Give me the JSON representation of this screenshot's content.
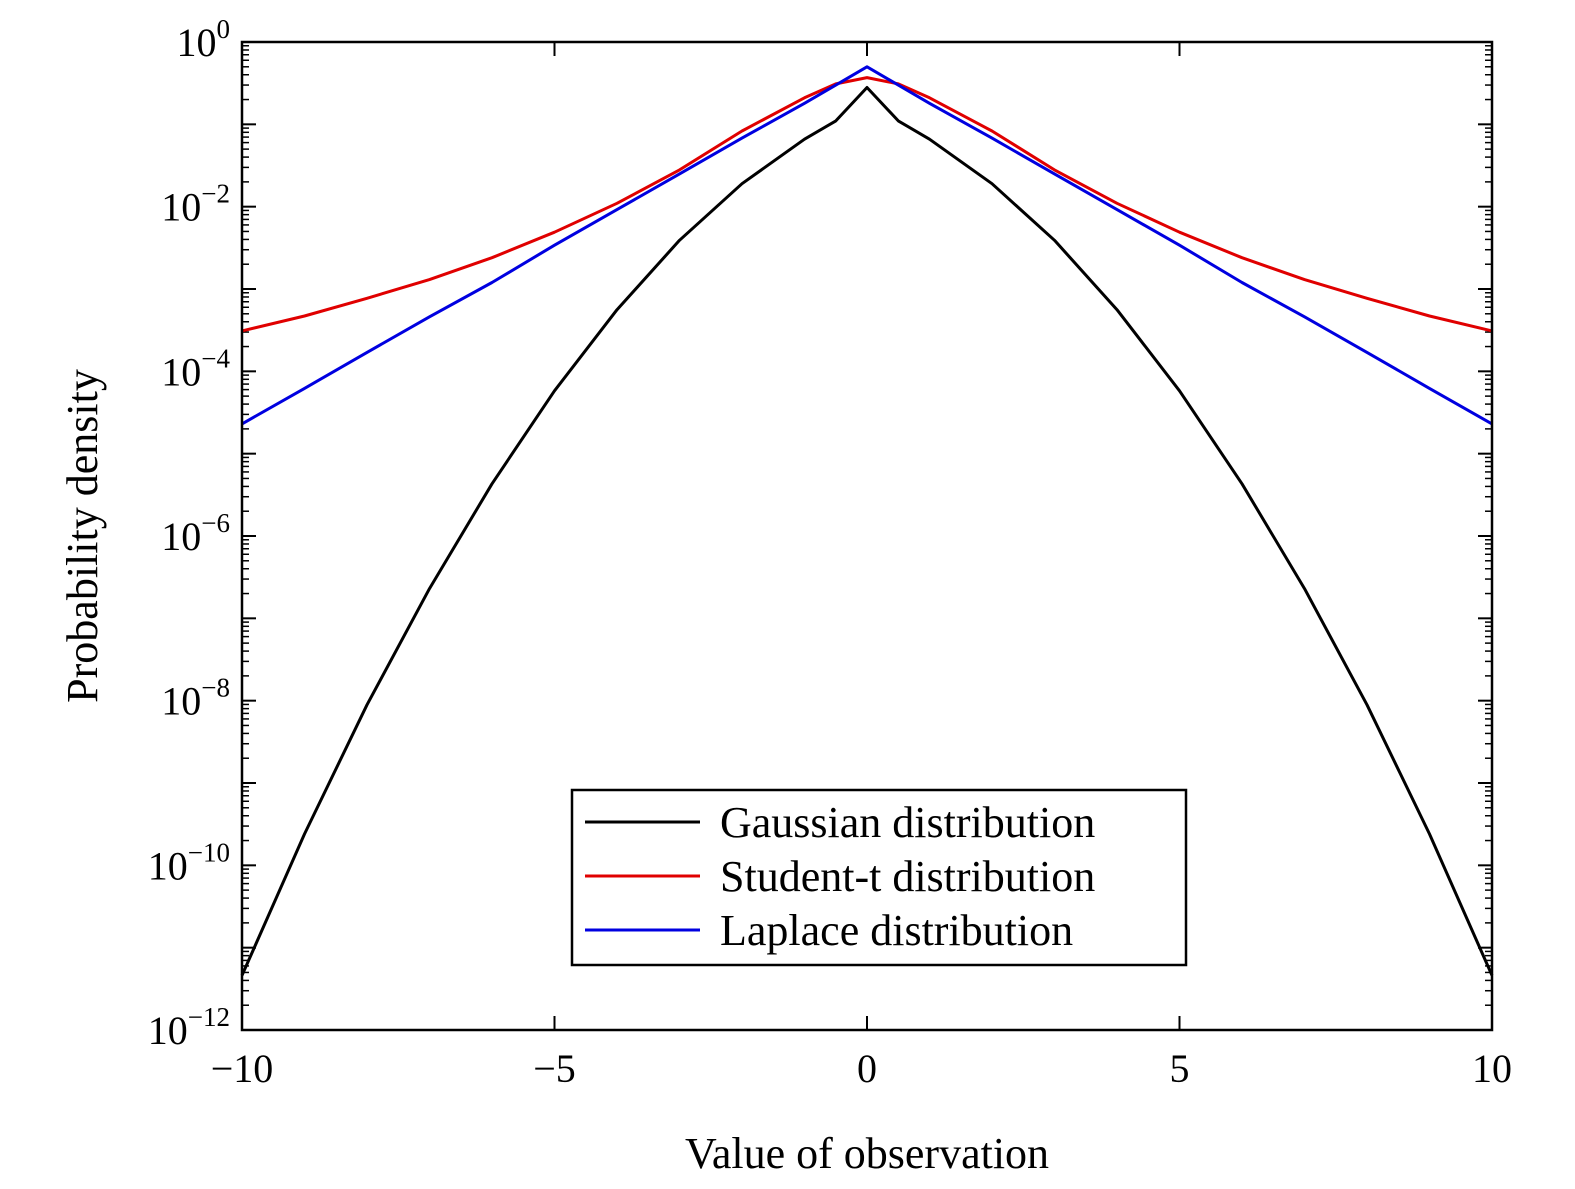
{
  "chart_data": {
    "type": "line",
    "xlabel": "Value of observation",
    "ylabel": "Probability density",
    "xlim": [
      -10,
      10
    ],
    "ylim": [
      1e-12,
      1
    ],
    "yscale": "log",
    "grid": false,
    "legend_position": "bottom-center",
    "x_ticks": [
      {
        "value": -10,
        "label": "−10"
      },
      {
        "value": -5,
        "label": "−5"
      },
      {
        "value": 0,
        "label": "0"
      },
      {
        "value": 5,
        "label": "5"
      },
      {
        "value": 10,
        "label": "10"
      }
    ],
    "y_ticks": [
      {
        "exp": 0,
        "base": "10",
        "sup": "0"
      },
      {
        "exp": -2,
        "base": "10",
        "sup": "−2"
      },
      {
        "exp": -4,
        "base": "10",
        "sup": "−4"
      },
      {
        "exp": -6,
        "base": "10",
        "sup": "−6"
      },
      {
        "exp": -8,
        "base": "10",
        "sup": "−8"
      },
      {
        "exp": -10,
        "base": "10",
        "sup": "−10"
      },
      {
        "exp": -12,
        "base": "10",
        "sup": "−12"
      }
    ],
    "x": [
      -10,
      -9,
      -8,
      -7,
      -6,
      -5,
      -4,
      -3,
      -2,
      -1,
      -0.5,
      0,
      0.5,
      1,
      2,
      3,
      4,
      5,
      6,
      7,
      8,
      9,
      10
    ],
    "series": [
      {
        "name": "Gaussian distribution",
        "color": "#000000",
        "values": [
          4.6e-12,
          2.4e-10,
          8.9e-09,
          2.3e-07,
          4.3e-06,
          5.8e-05,
          0.00056,
          0.0039,
          0.019,
          0.066,
          0.11,
          0.28,
          0.11,
          0.066,
          0.019,
          0.0039,
          0.00056,
          5.8e-05,
          4.3e-06,
          2.3e-07,
          8.9e-09,
          2.4e-10,
          4.6e-12
        ]
      },
      {
        "name": "Student-t distribution",
        "color": "#e00000",
        "values": [
          0.00031,
          0.00047,
          0.00077,
          0.0013,
          0.0024,
          0.0049,
          0.011,
          0.028,
          0.083,
          0.21,
          0.31,
          0.37,
          0.31,
          0.21,
          0.083,
          0.028,
          0.011,
          0.0049,
          0.0024,
          0.0013,
          0.00077,
          0.00047,
          0.00031
        ]
      },
      {
        "name": "Laplace distribution",
        "color": "#0000e0",
        "values": [
          2.3e-05,
          6.2e-05,
          0.00017,
          0.00046,
          0.0012,
          0.0034,
          0.0092,
          0.025,
          0.068,
          0.18,
          0.3,
          0.5,
          0.3,
          0.18,
          0.068,
          0.025,
          0.0092,
          0.0034,
          0.0012,
          0.00046,
          0.00017,
          6.2e-05,
          2.3e-05
        ]
      }
    ]
  }
}
